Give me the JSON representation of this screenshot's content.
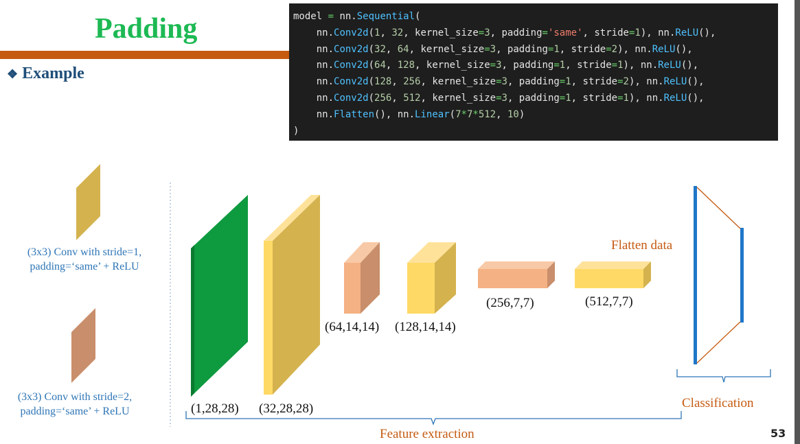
{
  "slide": {
    "title": "Padding",
    "bullet_glyph": "❖",
    "bullet_text": "Example",
    "page_number": "53"
  },
  "code": {
    "lines": [
      [
        [
          "model ",
          "plain"
        ],
        [
          "=",
          "op"
        ],
        [
          " nn.",
          "plain"
        ],
        [
          "Sequential",
          "fn"
        ],
        [
          "(",
          "plain"
        ]
      ],
      [
        [
          "    nn.",
          "plain"
        ],
        [
          "Conv2d",
          "fn"
        ],
        [
          "(",
          "plain"
        ],
        [
          "1",
          "num"
        ],
        [
          ", ",
          "plain"
        ],
        [
          "32",
          "num"
        ],
        [
          ", kernel_size",
          "plain"
        ],
        [
          "=",
          "op"
        ],
        [
          "3",
          "num"
        ],
        [
          ", padding",
          "plain"
        ],
        [
          "=",
          "op"
        ],
        [
          "'same'",
          "str"
        ],
        [
          ", stride",
          "plain"
        ],
        [
          "=",
          "op"
        ],
        [
          "1",
          "num"
        ],
        [
          "), nn.",
          "plain"
        ],
        [
          "ReLU",
          "fn"
        ],
        [
          "(),",
          "plain"
        ]
      ],
      [
        [
          "    nn.",
          "plain"
        ],
        [
          "Conv2d",
          "fn"
        ],
        [
          "(",
          "plain"
        ],
        [
          "32",
          "num"
        ],
        [
          ", ",
          "plain"
        ],
        [
          "64",
          "num"
        ],
        [
          ", kernel_size",
          "plain"
        ],
        [
          "=",
          "op"
        ],
        [
          "3",
          "num"
        ],
        [
          ", padding",
          "plain"
        ],
        [
          "=",
          "op"
        ],
        [
          "1",
          "num"
        ],
        [
          ", stride",
          "plain"
        ],
        [
          "=",
          "op"
        ],
        [
          "2",
          "num"
        ],
        [
          "), nn.",
          "plain"
        ],
        [
          "ReLU",
          "fn"
        ],
        [
          "(),",
          "plain"
        ]
      ],
      [
        [
          "    nn.",
          "plain"
        ],
        [
          "Conv2d",
          "fn"
        ],
        [
          "(",
          "plain"
        ],
        [
          "64",
          "num"
        ],
        [
          ", ",
          "plain"
        ],
        [
          "128",
          "num"
        ],
        [
          ", kernel_size",
          "plain"
        ],
        [
          "=",
          "op"
        ],
        [
          "3",
          "num"
        ],
        [
          ", padding",
          "plain"
        ],
        [
          "=",
          "op"
        ],
        [
          "1",
          "num"
        ],
        [
          ", stride",
          "plain"
        ],
        [
          "=",
          "op"
        ],
        [
          "1",
          "num"
        ],
        [
          "), nn.",
          "plain"
        ],
        [
          "ReLU",
          "fn"
        ],
        [
          "(),",
          "plain"
        ]
      ],
      [
        [
          "    nn.",
          "plain"
        ],
        [
          "Conv2d",
          "fn"
        ],
        [
          "(",
          "plain"
        ],
        [
          "128",
          "num"
        ],
        [
          ", ",
          "plain"
        ],
        [
          "256",
          "num"
        ],
        [
          ", kernel_size",
          "plain"
        ],
        [
          "=",
          "op"
        ],
        [
          "3",
          "num"
        ],
        [
          ", padding",
          "plain"
        ],
        [
          "=",
          "op"
        ],
        [
          "1",
          "num"
        ],
        [
          ", stride",
          "plain"
        ],
        [
          "=",
          "op"
        ],
        [
          "2",
          "num"
        ],
        [
          "), nn.",
          "plain"
        ],
        [
          "ReLU",
          "fn"
        ],
        [
          "(),",
          "plain"
        ]
      ],
      [
        [
          "    nn.",
          "plain"
        ],
        [
          "Conv2d",
          "fn"
        ],
        [
          "(",
          "plain"
        ],
        [
          "256",
          "num"
        ],
        [
          ", ",
          "plain"
        ],
        [
          "512",
          "num"
        ],
        [
          ", kernel_size",
          "plain"
        ],
        [
          "=",
          "op"
        ],
        [
          "3",
          "num"
        ],
        [
          ", padding",
          "plain"
        ],
        [
          "=",
          "op"
        ],
        [
          "1",
          "num"
        ],
        [
          ", stride",
          "plain"
        ],
        [
          "=",
          "op"
        ],
        [
          "1",
          "num"
        ],
        [
          "), nn.",
          "plain"
        ],
        [
          "ReLU",
          "fn"
        ],
        [
          "(),",
          "plain"
        ]
      ],
      [
        [
          "    nn.",
          "plain"
        ],
        [
          "Flatten",
          "fn"
        ],
        [
          "(), nn.",
          "plain"
        ],
        [
          "Linear",
          "fn"
        ],
        [
          "(",
          "plain"
        ],
        [
          "7",
          "num"
        ],
        [
          "*",
          "op"
        ],
        [
          "7",
          "num"
        ],
        [
          "*",
          "op"
        ],
        [
          "512",
          "num"
        ],
        [
          ", ",
          "plain"
        ],
        [
          "10",
          "num"
        ],
        [
          ")",
          "plain"
        ]
      ],
      [
        [
          ")",
          "plain"
        ]
      ]
    ]
  },
  "legend": {
    "stride1": {
      "line1": "(3x3) Conv with stride=1,",
      "line2": "padding=‘same’ + ReLU"
    },
    "stride2": {
      "line1": "(3x3) Conv with stride=2,",
      "line2": "padding=‘same’ + ReLU"
    }
  },
  "shapes": {
    "input": "(1,28,28)",
    "conv1": "(32,28,28)",
    "conv2": "(64,14,14)",
    "conv3": "(128,14,14)",
    "conv4": "(256,7,7)",
    "conv5": "(512,7,7)"
  },
  "annotations": {
    "flatten": "Flatten data",
    "classification": "Classification",
    "feature_extraction": "Feature extraction"
  },
  "colors": {
    "title_green": "#1db954",
    "rule_orange": "#c55a11",
    "bullet_blue": "#1f4e79",
    "input_green": "#0e9a3f",
    "stride1_yellow": "#ffd966",
    "stride2_salmon": "#f4b183",
    "fc_blue": "#1f77c8",
    "label_orange": "#c55a11",
    "legend_blue": "#2e75b6"
  }
}
